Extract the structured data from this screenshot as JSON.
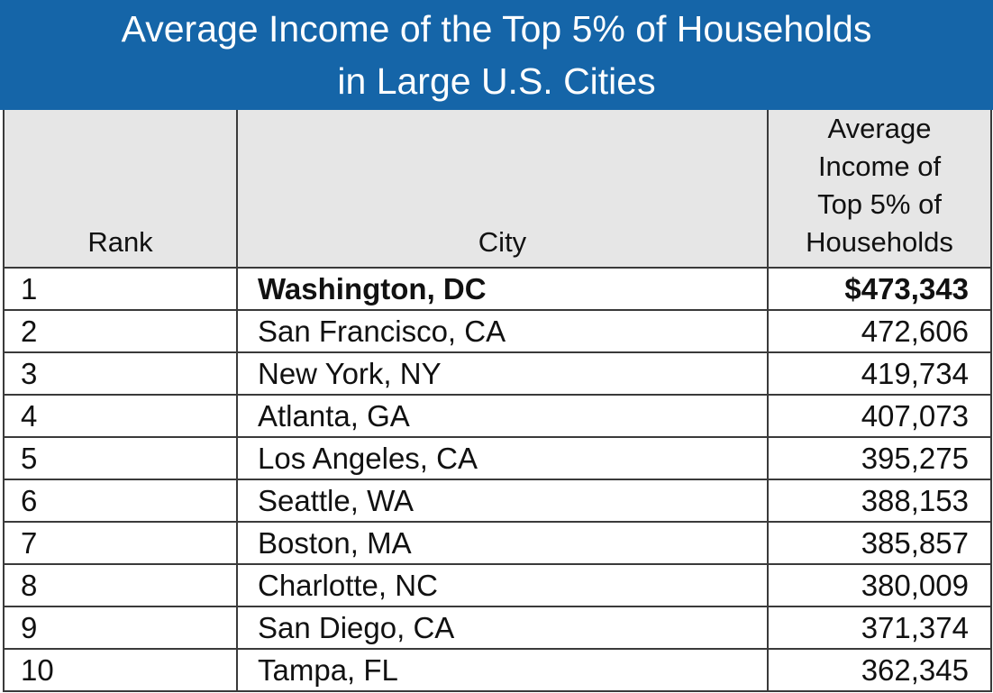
{
  "chart_data": {
    "type": "table",
    "title": "Average Income of the Top 5% of Households in Large U.S. Cities",
    "title_lines": [
      "Average Income of the Top 5% of Households",
      "in Large U.S. Cities"
    ],
    "columns": [
      "Rank",
      "City",
      "Average Income of Top 5% of Households"
    ],
    "rows": [
      {
        "rank": "1",
        "city": "Washington, DC",
        "income": "$473,343"
      },
      {
        "rank": "2",
        "city": "San Francisco, CA",
        "income": "472,606"
      },
      {
        "rank": "3",
        "city": "New York, NY",
        "income": "419,734"
      },
      {
        "rank": "4",
        "city": "Atlanta, GA",
        "income": "407,073"
      },
      {
        "rank": "5",
        "city": "Los Angeles, CA",
        "income": "395,275"
      },
      {
        "rank": "6",
        "city": "Seattle, WA",
        "income": "388,153"
      },
      {
        "rank": "7",
        "city": "Boston, MA",
        "income": "385,857"
      },
      {
        "rank": "8",
        "city": "Charlotte, NC",
        "income": "380,009"
      },
      {
        "rank": "9",
        "city": "San Diego, CA",
        "income": "371,374"
      },
      {
        "rank": "10",
        "city": "Tampa, FL",
        "income": "362,345"
      }
    ],
    "header_bg": "#e6e6e6",
    "title_bg": "#1565a8"
  },
  "header": {
    "rank": "Rank",
    "city": "City",
    "income_lines": [
      "Average",
      "Income of",
      "Top 5% of",
      "Households"
    ]
  }
}
